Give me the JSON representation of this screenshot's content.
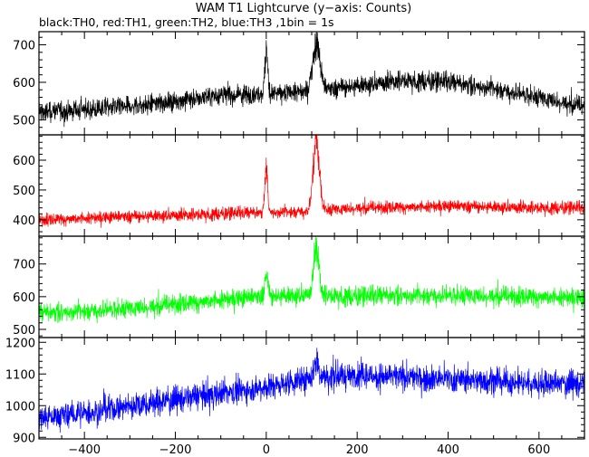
{
  "chart_data": {
    "type": "line",
    "title": "WAM T1 Lightcurve (y−axis: Counts)",
    "subtitle": "black:TH0, red:TH1, green:TH2, blue:TH3 ,1bin = 1s",
    "xlim": [
      -500,
      700
    ],
    "x_ticks": [
      -400,
      -200,
      0,
      200,
      400,
      600
    ],
    "x_tick_labels": [
      "−400",
      "−200",
      "0",
      "200",
      "400",
      "600"
    ],
    "grid": false,
    "panels": [
      {
        "channel": "TH0",
        "color": "#000000",
        "ylim": [
          460,
          735
        ],
        "y_ticks": [
          500,
          600,
          700
        ],
        "y_tick_labels": [
          "500",
          "600",
          "700"
        ],
        "baseline": [
          [
            -500,
            520
          ],
          [
            -300,
            535
          ],
          [
            -100,
            565
          ],
          [
            0,
            570
          ],
          [
            100,
            575
          ],
          [
            200,
            590
          ],
          [
            300,
            605
          ],
          [
            400,
            600
          ],
          [
            500,
            585
          ],
          [
            600,
            560
          ],
          [
            700,
            535
          ]
        ],
        "noise": 22,
        "spikes": [
          [
            0,
            120,
            3
          ],
          [
            110,
            135,
            8
          ]
        ]
      },
      {
        "channel": "TH1",
        "color": "#ff0000",
        "ylim": [
          345,
          685
        ],
        "y_ticks": [
          400,
          500,
          600
        ],
        "y_tick_labels": [
          "400",
          "500",
          "600"
        ],
        "baseline": [
          [
            -500,
            400
          ],
          [
            -300,
            410
          ],
          [
            -100,
            420
          ],
          [
            0,
            425
          ],
          [
            100,
            430
          ],
          [
            200,
            440
          ],
          [
            400,
            445
          ],
          [
            600,
            440
          ],
          [
            700,
            440
          ]
        ],
        "noise": 18,
        "spikes": [
          [
            0,
            160,
            3
          ],
          [
            110,
            230,
            7
          ]
        ]
      },
      {
        "channel": "TH2",
        "color": "#00ff00",
        "ylim": [
          475,
          785
        ],
        "y_ticks": [
          500,
          600,
          700
        ],
        "y_tick_labels": [
          "500",
          "600",
          "700"
        ],
        "baseline": [
          [
            -500,
            550
          ],
          [
            -300,
            565
          ],
          [
            -100,
            590
          ],
          [
            0,
            600
          ],
          [
            100,
            605
          ],
          [
            200,
            600
          ],
          [
            300,
            605
          ],
          [
            400,
            605
          ],
          [
            600,
            600
          ],
          [
            700,
            595
          ]
        ],
        "noise": 25,
        "spikes": [
          [
            0,
            60,
            4
          ],
          [
            110,
            150,
            6
          ]
        ]
      },
      {
        "channel": "TH3",
        "color": "#0000ff",
        "ylim": [
          895,
          1215
        ],
        "y_ticks": [
          900,
          1000,
          1100,
          1200
        ],
        "y_tick_labels": [
          "900",
          "1000",
          "1100",
          "1200"
        ],
        "baseline": [
          [
            -500,
            960
          ],
          [
            -400,
            975
          ],
          [
            -200,
            1020
          ],
          [
            0,
            1060
          ],
          [
            100,
            1085
          ],
          [
            200,
            1095
          ],
          [
            300,
            1090
          ],
          [
            400,
            1085
          ],
          [
            500,
            1080
          ],
          [
            600,
            1070
          ],
          [
            700,
            1070
          ]
        ],
        "noise": 35,
        "spikes": [
          [
            110,
            60,
            5
          ]
        ]
      }
    ]
  }
}
